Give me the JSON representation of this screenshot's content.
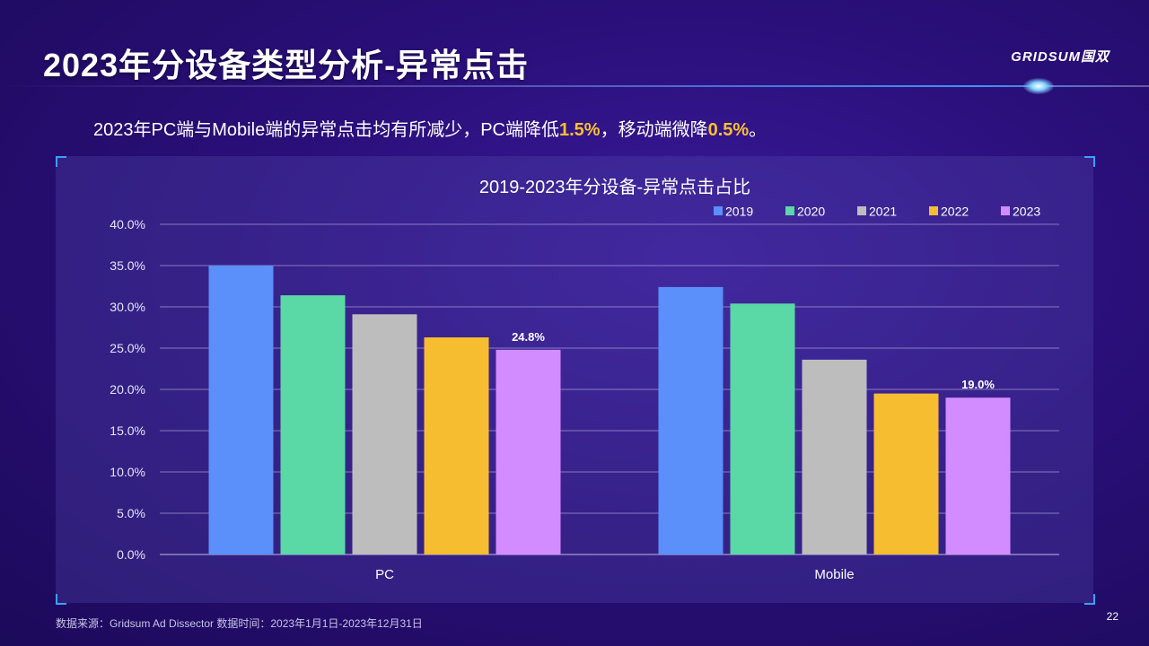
{
  "page": {
    "title": "2023年分设备类型分析-异常点击",
    "logo": "GRIDSUM国双",
    "subtitle_parts": [
      "2023年PC端与Mobile端的异常点击均有所减少，PC端降低",
      "1.5%",
      "，移动端微降",
      "0.5%",
      "。"
    ],
    "footer": "数据来源：Gridsum Ad Dissector 数据时间：2023年1月1日-2023年12月31日",
    "page_number": "22"
  },
  "colors": {
    "2019": "#5b8ff9",
    "2020": "#5ad8a6",
    "2021": "#bdbdbd",
    "2022": "#f6bd30",
    "2023": "#d38cff",
    "highlight": "#f9c02e"
  },
  "chart_data": {
    "type": "bar",
    "title": "2019-2023年分设备-异常点击占比",
    "categories": [
      "PC",
      "Mobile"
    ],
    "series": [
      {
        "name": "2019",
        "values": [
          35.0,
          32.4
        ]
      },
      {
        "name": "2020",
        "values": [
          31.4,
          30.4
        ]
      },
      {
        "name": "2021",
        "values": [
          29.1,
          23.6
        ]
      },
      {
        "name": "2022",
        "values": [
          26.3,
          19.5
        ]
      },
      {
        "name": "2023",
        "values": [
          24.8,
          19.0
        ]
      }
    ],
    "data_labels": [
      {
        "series": "2023",
        "category": "PC",
        "text": "24.8%"
      },
      {
        "series": "2023",
        "category": "Mobile",
        "text": "19.0%"
      }
    ],
    "yticks": [
      "0.0%",
      "5.0%",
      "10.0%",
      "15.0%",
      "20.0%",
      "25.0%",
      "30.0%",
      "35.0%",
      "40.0%"
    ],
    "ylim": [
      0,
      40
    ],
    "grid": true,
    "legend_position": "top-right"
  }
}
